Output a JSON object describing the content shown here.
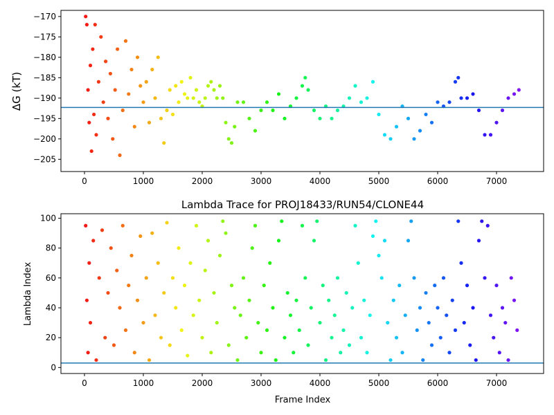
{
  "colors": {
    "refline": "#1f77b4",
    "axis": "#000000",
    "colormap": "rainbow"
  },
  "chart_data": [
    {
      "type": "scatter",
      "title": "",
      "xlabel": "",
      "ylabel": "ΔG (kT)",
      "xlim": [
        -400,
        7800
      ],
      "ylim": [
        -208,
        -168.5
      ],
      "xticks": [
        "0",
        "1000",
        "2000",
        "3000",
        "4000",
        "5000",
        "6000",
        "7000"
      ],
      "yticks": [
        "−205",
        "−200",
        "−195",
        "−190",
        "−185",
        "−180",
        "−175",
        "−170"
      ],
      "hline": -192.3,
      "color_by": "frame index (rainbow: red → purple)",
      "series": [
        {
          "values": [
            [
              20,
              -170
            ],
            [
              40,
              -172
            ],
            [
              60,
              -188
            ],
            [
              80,
              -196
            ],
            [
              100,
              -182
            ],
            [
              120,
              -203
            ],
            [
              140,
              -178
            ],
            [
              160,
              -194
            ],
            [
              180,
              -172
            ],
            [
              200,
              -199
            ],
            [
              240,
              -186
            ],
            [
              280,
              -175
            ],
            [
              320,
              -191
            ],
            [
              360,
              -181
            ],
            [
              400,
              -195
            ],
            [
              440,
              -184
            ],
            [
              480,
              -200
            ],
            [
              520,
              -188
            ],
            [
              560,
              -178
            ],
            [
              600,
              -204
            ],
            [
              650,
              -193
            ],
            [
              700,
              -176
            ],
            [
              750,
              -189
            ],
            [
              800,
              -183
            ],
            [
              850,
              -197
            ],
            [
              900,
              -180
            ],
            [
              950,
              -187
            ],
            [
              1000,
              -191
            ],
            [
              1050,
              -186
            ],
            [
              1100,
              -196
            ],
            [
              1150,
              -183
            ],
            [
              1200,
              -190
            ],
            [
              1250,
              -180
            ],
            [
              1300,
              -195
            ],
            [
              1350,
              -201
            ],
            [
              1400,
              -193
            ],
            [
              1450,
              -188
            ],
            [
              1500,
              -194
            ],
            [
              1550,
              -187
            ],
            [
              1600,
              -191
            ],
            [
              1650,
              -186
            ],
            [
              1700,
              -189
            ],
            [
              1750,
              -190
            ],
            [
              1800,
              -185
            ],
            [
              1850,
              -190
            ],
            [
              1900,
              -188
            ],
            [
              1950,
              -191
            ],
            [
              2000,
              -192
            ],
            [
              2050,
              -190
            ],
            [
              2100,
              -187
            ],
            [
              2150,
              -186
            ],
            [
              2200,
              -188
            ],
            [
              2250,
              -190
            ],
            [
              2300,
              -187
            ],
            [
              2350,
              -190
            ],
            [
              2400,
              -196
            ],
            [
              2450,
              -200
            ],
            [
              2500,
              -201
            ],
            [
              2550,
              -197
            ],
            [
              2600,
              -191
            ],
            [
              2700,
              -191
            ],
            [
              2800,
              -195
            ],
            [
              2900,
              -198
            ],
            [
              3000,
              -193
            ],
            [
              3100,
              -191
            ],
            [
              3200,
              -193
            ],
            [
              3300,
              -189
            ],
            [
              3400,
              -195
            ],
            [
              3500,
              -192
            ],
            [
              3600,
              -190
            ],
            [
              3700,
              -187
            ],
            [
              3750,
              -185
            ],
            [
              3800,
              -188
            ],
            [
              3900,
              -193
            ],
            [
              4000,
              -195
            ],
            [
              4100,
              -192
            ],
            [
              4200,
              -195
            ],
            [
              4300,
              -193
            ],
            [
              4400,
              -192
            ],
            [
              4500,
              -190
            ],
            [
              4600,
              -187
            ],
            [
              4700,
              -191
            ],
            [
              4800,
              -190
            ],
            [
              4900,
              -186
            ],
            [
              5000,
              -194
            ],
            [
              5100,
              -199
            ],
            [
              5200,
              -200
            ],
            [
              5300,
              -197
            ],
            [
              5400,
              -192
            ],
            [
              5500,
              -195
            ],
            [
              5600,
              -200
            ],
            [
              5700,
              -198
            ],
            [
              5800,
              -194
            ],
            [
              5900,
              -196
            ],
            [
              6000,
              -191
            ],
            [
              6100,
              -192
            ],
            [
              6200,
              -191
            ],
            [
              6300,
              -186
            ],
            [
              6350,
              -185
            ],
            [
              6400,
              -190
            ],
            [
              6500,
              -190
            ],
            [
              6600,
              -189
            ],
            [
              6700,
              -193
            ],
            [
              6800,
              -199
            ],
            [
              6900,
              -199
            ],
            [
              7000,
              -196
            ],
            [
              7100,
              -193
            ],
            [
              7200,
              -190
            ],
            [
              7300,
              -189
            ],
            [
              7380,
              -188
            ]
          ]
        }
      ]
    },
    {
      "type": "scatter",
      "title": "Lambda Trace for PROJ18433/RUN54/CLONE44",
      "xlabel": "Frame Index",
      "ylabel": "Lambda Index",
      "xlim": [
        -400,
        7800
      ],
      "ylim": [
        -4,
        103
      ],
      "xticks": [
        "0",
        "1000",
        "2000",
        "3000",
        "4000",
        "5000",
        "6000",
        "7000"
      ],
      "yticks": [
        "0",
        "20",
        "40",
        "60",
        "80",
        "100"
      ],
      "hline": 3,
      "color_by": "frame index (rainbow: red → purple)",
      "series": [
        {
          "values": [
            [
              20,
              95
            ],
            [
              40,
              45
            ],
            [
              60,
              10
            ],
            [
              80,
              70
            ],
            [
              100,
              30
            ],
            [
              150,
              85
            ],
            [
              200,
              5
            ],
            [
              250,
              60
            ],
            [
              300,
              92
            ],
            [
              350,
              20
            ],
            [
              400,
              50
            ],
            [
              450,
              80
            ],
            [
              500,
              15
            ],
            [
              550,
              65
            ],
            [
              600,
              40
            ],
            [
              650,
              95
            ],
            [
              700,
              25
            ],
            [
              750,
              55
            ],
            [
              800,
              75
            ],
            [
              850,
              10
            ],
            [
              900,
              45
            ],
            [
              950,
              88
            ],
            [
              1000,
              30
            ],
            [
              1050,
              60
            ],
            [
              1100,
              5
            ],
            [
              1150,
              90
            ],
            [
              1200,
              35
            ],
            [
              1250,
              70
            ],
            [
              1300,
              20
            ],
            [
              1350,
              50
            ],
            [
              1400,
              97
            ],
            [
              1450,
              15
            ],
            [
              1500,
              60
            ],
            [
              1550,
              40
            ],
            [
              1600,
              80
            ],
            [
              1650,
              25
            ],
            [
              1700,
              55
            ],
            [
              1750,
              8
            ],
            [
              1800,
              70
            ],
            [
              1850,
              35
            ],
            [
              1900,
              95
            ],
            [
              1950,
              45
            ],
            [
              2000,
              20
            ],
            [
              2050,
              65
            ],
            [
              2100,
              85
            ],
            [
              2150,
              10
            ],
            [
              2200,
              50
            ],
            [
              2250,
              30
            ],
            [
              2300,
              75
            ],
            [
              2350,
              98
            ],
            [
              2400,
              90
            ],
            [
              2450,
              15
            ],
            [
              2500,
              55
            ],
            [
              2550,
              40
            ],
            [
              2600,
              5
            ],
            [
              2650,
              35
            ],
            [
              2700,
              60
            ],
            [
              2750,
              20
            ],
            [
              2800,
              45
            ],
            [
              2850,
              80
            ],
            [
              2900,
              95
            ],
            [
              2950,
              30
            ],
            [
              3000,
              10
            ],
            [
              3050,
              55
            ],
            [
              3100,
              25
            ],
            [
              3150,
              70
            ],
            [
              3200,
              40
            ],
            [
              3250,
              5
            ],
            [
              3300,
              85
            ],
            [
              3350,
              98
            ],
            [
              3400,
              20
            ],
            [
              3450,
              50
            ],
            [
              3500,
              35
            ],
            [
              3550,
              10
            ],
            [
              3600,
              45
            ],
            [
              3650,
              25
            ],
            [
              3700,
              95
            ],
            [
              3750,
              60
            ],
            [
              3800,
              15
            ],
            [
              3850,
              40
            ],
            [
              3900,
              85
            ],
            [
              3950,
              98
            ],
            [
              4000,
              30
            ],
            [
              4050,
              55
            ],
            [
              4100,
              5
            ],
            [
              4150,
              45
            ],
            [
              4200,
              20
            ],
            [
              4250,
              35
            ],
            [
              4300,
              60
            ],
            [
              4350,
              10
            ],
            [
              4400,
              25
            ],
            [
              4450,
              50
            ],
            [
              4500,
              15
            ],
            [
              4550,
              40
            ],
            [
              4600,
              95
            ],
            [
              4650,
              70
            ],
            [
              4700,
              20
            ],
            [
              4750,
              45
            ],
            [
              4800,
              10
            ],
            [
              4850,
              35
            ],
            [
              4900,
              88
            ],
            [
              4950,
              98
            ],
            [
              5000,
              75
            ],
            [
              5050,
              60
            ],
            [
              5100,
              85
            ],
            [
              5150,
              30
            ],
            [
              5200,
              5
            ],
            [
              5250,
              45
            ],
            [
              5300,
              20
            ],
            [
              5350,
              55
            ],
            [
              5400,
              10
            ],
            [
              5450,
              35
            ],
            [
              5500,
              85
            ],
            [
              5550,
              98
            ],
            [
              5600,
              60
            ],
            [
              5650,
              25
            ],
            [
              5700,
              40
            ],
            [
              5750,
              5
            ],
            [
              5800,
              50
            ],
            [
              5850,
              30
            ],
            [
              5900,
              15
            ],
            [
              5950,
              55
            ],
            [
              6000,
              40
            ],
            [
              6050,
              20
            ],
            [
              6100,
              60
            ],
            [
              6150,
              35
            ],
            [
              6200,
              10
            ],
            [
              6250,
              45
            ],
            [
              6300,
              25
            ],
            [
              6350,
              98
            ],
            [
              6400,
              70
            ],
            [
              6450,
              30
            ],
            [
              6500,
              55
            ],
            [
              6550,
              15
            ],
            [
              6600,
              40
            ],
            [
              6650,
              5
            ],
            [
              6700,
              85
            ],
            [
              6750,
              98
            ],
            [
              6800,
              60
            ],
            [
              6850,
              95
            ],
            [
              6900,
              35
            ],
            [
              6950,
              20
            ],
            [
              7000,
              55
            ],
            [
              7050,
              10
            ],
            [
              7100,
              40
            ],
            [
              7150,
              30
            ],
            [
              7200,
              5
            ],
            [
              7250,
              60
            ],
            [
              7300,
              45
            ],
            [
              7350,
              25
            ]
          ]
        }
      ]
    }
  ]
}
